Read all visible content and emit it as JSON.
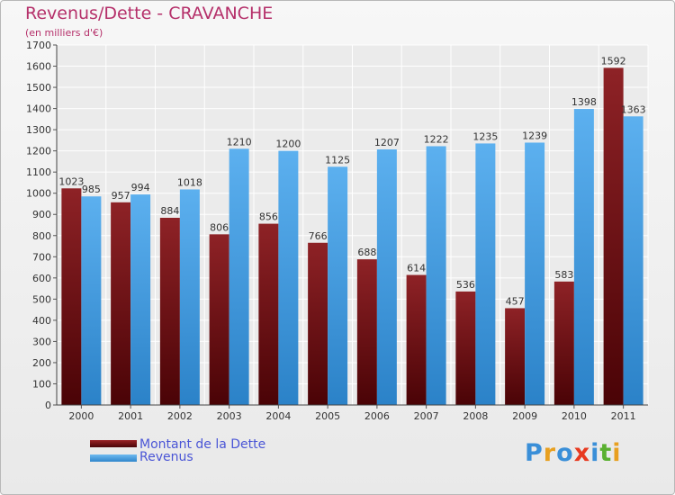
{
  "chart_data": {
    "type": "bar",
    "title": "Revenus/Dette - CRAVANCHE",
    "subtitle": "(en milliers d'€)",
    "categories": [
      "2000",
      "2001",
      "2002",
      "2003",
      "2004",
      "2005",
      "2006",
      "2007",
      "2008",
      "2009",
      "2010",
      "2011"
    ],
    "series": [
      {
        "name": "Montant de la Dette",
        "color": "#7a1518",
        "values": [
          1023,
          957,
          884,
          806,
          856,
          766,
          688,
          614,
          536,
          457,
          583,
          1592
        ]
      },
      {
        "name": "Revenus",
        "color": "#4aa3e6",
        "values": [
          985,
          994,
          1018,
          1210,
          1200,
          1125,
          1207,
          1222,
          1235,
          1239,
          1398,
          1363
        ]
      }
    ],
    "yticks": [
      0,
      100,
      200,
      300,
      400,
      500,
      600,
      700,
      800,
      900,
      1000,
      1100,
      1200,
      1300,
      1400,
      1500,
      1600,
      1700
    ],
    "ylim": [
      0,
      1700
    ],
    "grid": true,
    "legend": "bottom-left"
  },
  "logo": {
    "text": "Proxiti"
  }
}
